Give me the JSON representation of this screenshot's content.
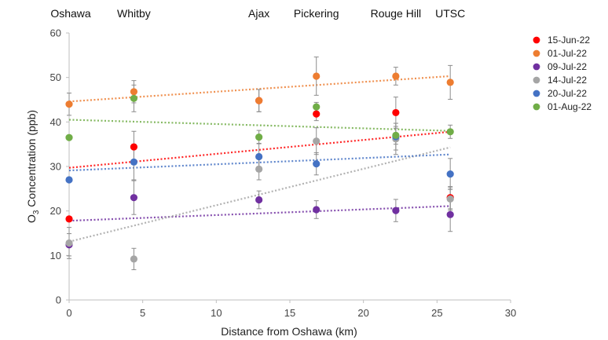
{
  "chart_data": {
    "type": "scatter",
    "xlabel": "Distance from Oshawa (km)",
    "ylabel_main": "O",
    "ylabel_sub": "3",
    "ylabel_rest": " Concentration (ppb)",
    "xlim": [
      0,
      30
    ],
    "ylim": [
      0,
      60
    ],
    "xticks": [
      0,
      5,
      10,
      15,
      20,
      25,
      30
    ],
    "yticks": [
      0,
      10,
      20,
      30,
      40,
      50,
      60
    ],
    "legend_position": "right",
    "trendlines": "linear, dotted",
    "sites": [
      {
        "name": "Oshawa",
        "x": 0
      },
      {
        "name": "Whitby",
        "x": 4.4
      },
      {
        "name": "Ajax",
        "x": 12.9
      },
      {
        "name": "Pickering",
        "x": 16.8
      },
      {
        "name": "Rouge Hill",
        "x": 22.2
      },
      {
        "name": "UTSC",
        "x": 25.9
      }
    ],
    "x": [
      0,
      4.4,
      12.9,
      16.8,
      22.2,
      25.9
    ],
    "series": [
      {
        "name": "15-Jun-22",
        "color": "#ff0000",
        "values": [
          18.2,
          34.4,
          44.8,
          41.8,
          42.1,
          23.0
        ],
        "errors": [
          0,
          3.5,
          2.5,
          1.5,
          3.5,
          2.5
        ],
        "trend": [
          29.7,
          37.8
        ]
      },
      {
        "name": "01-Jul-22",
        "color": "#ed7d31",
        "values": [
          44.0,
          46.8,
          44.8,
          50.3,
          50.3,
          48.9
        ],
        "errors": [
          2.5,
          2.5,
          2.5,
          4.3,
          2.0,
          3.8
        ],
        "trend": [
          44.6,
          50.3
        ]
      },
      {
        "name": "09-Jul-22",
        "color": "#7030a0",
        "values": [
          12.4,
          23.0,
          22.5,
          20.3,
          20.1,
          19.2
        ],
        "errors": [
          2.5,
          3.8,
          2.0,
          2.0,
          2.5,
          3.8
        ],
        "trend": [
          17.8,
          21.1
        ]
      },
      {
        "name": "14-Jul-22",
        "color": "#a5a5a5",
        "values": [
          12.8,
          9.2,
          29.4,
          35.7,
          36.2,
          22.7
        ],
        "errors": [
          3.5,
          2.4,
          2.4,
          3.0,
          3.5,
          2.5
        ],
        "trend": [
          13.1,
          34.3
        ]
      },
      {
        "name": "20-Jul-22",
        "color": "#4472c4",
        "values": [
          27.0,
          31.0,
          32.2,
          30.6,
          36.7,
          28.3
        ],
        "errors": [
          0,
          4.0,
          3.0,
          2.5,
          3.0,
          3.5
        ],
        "trend": [
          29.1,
          32.7
        ]
      },
      {
        "name": "01-Aug-22",
        "color": "#70ad47",
        "values": [
          36.5,
          45.3,
          36.6,
          43.4,
          37.0,
          37.8
        ],
        "errors": [
          0,
          3.0,
          1.5,
          1.0,
          2.0,
          1.5
        ],
        "trend": [
          40.5,
          38.0
        ]
      }
    ]
  }
}
